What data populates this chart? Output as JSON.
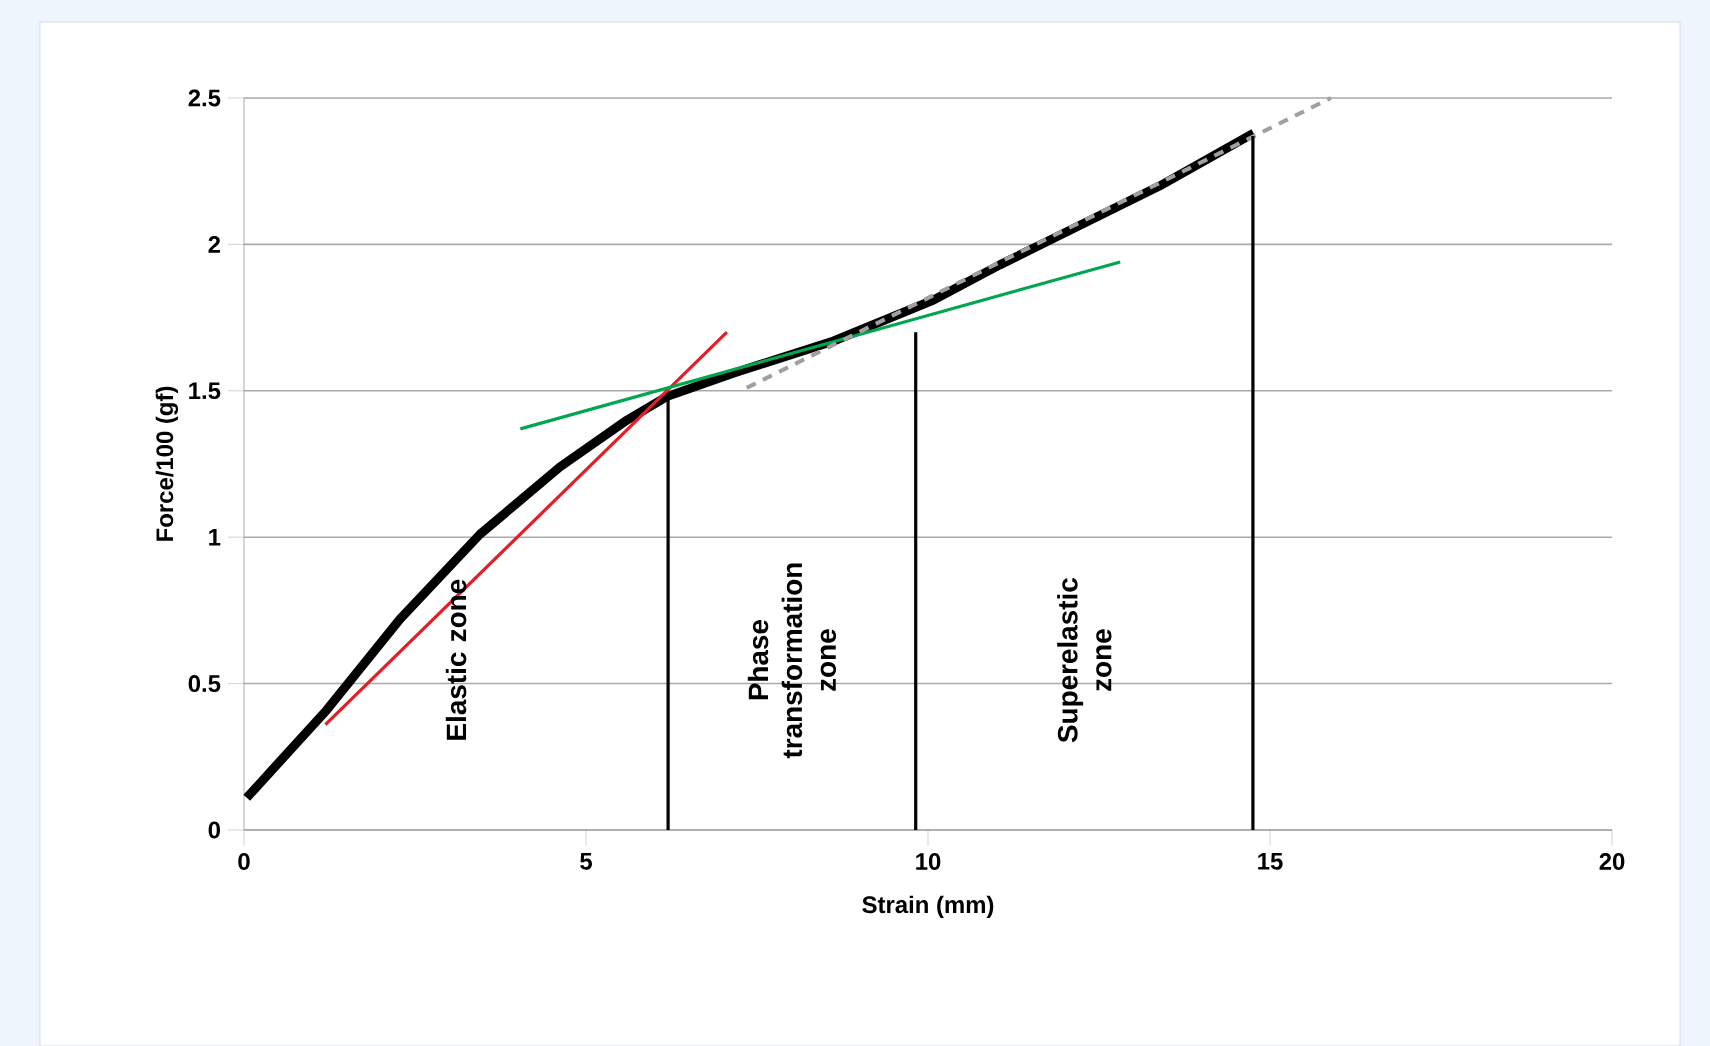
{
  "chart_data": {
    "type": "line",
    "xlabel": "Strain (mm)",
    "ylabel": "Force/100 (gf)",
    "xlim": [
      0,
      20
    ],
    "ylim": [
      0,
      2.5
    ],
    "xticks": [
      0,
      5,
      10,
      15,
      20
    ],
    "yticks": [
      0,
      0.5,
      1,
      1.5,
      2,
      2.5
    ],
    "grid": "y",
    "marker": "none",
    "series": [
      {
        "color": "#000000",
        "x": [
          0.04,
          1.21,
          2.28,
          3.45,
          4.62,
          5.6,
          6.18,
          7.15,
          8.62,
          10.08,
          11.05,
          11.83,
          13.39,
          14.76
        ],
        "values": [
          0.11,
          0.41,
          0.72,
          1.01,
          1.24,
          1.4,
          1.48,
          1.56,
          1.67,
          1.81,
          1.93,
          2.02,
          2.2,
          2.38
        ]
      },
      {
        "color": "#e41e26",
        "x": [
          1.19,
          7.06
        ],
        "values": [
          0.36,
          1.7
        ]
      },
      {
        "color": "#00a650",
        "x": [
          4.04,
          12.81
        ],
        "values": [
          1.37,
          1.94
        ]
      },
      {
        "color": "#a0a0a0",
        "line_style": "dashed",
        "x": [
          7.35,
          15.89
        ],
        "values": [
          1.51,
          2.5
        ]
      },
      {
        "color": "#000000",
        "x": [
          6.2,
          6.2
        ],
        "values": [
          0,
          1.48
        ]
      },
      {
        "color": "#000000",
        "x": [
          9.82,
          9.82
        ],
        "values": [
          0,
          1.7
        ]
      },
      {
        "color": "#000000",
        "x": [
          14.75,
          14.75
        ],
        "values": [
          0,
          2.37
        ]
      }
    ],
    "annotations": [
      "Elastic zone",
      "Phase transformation zone",
      "Superelastic zone"
    ]
  }
}
